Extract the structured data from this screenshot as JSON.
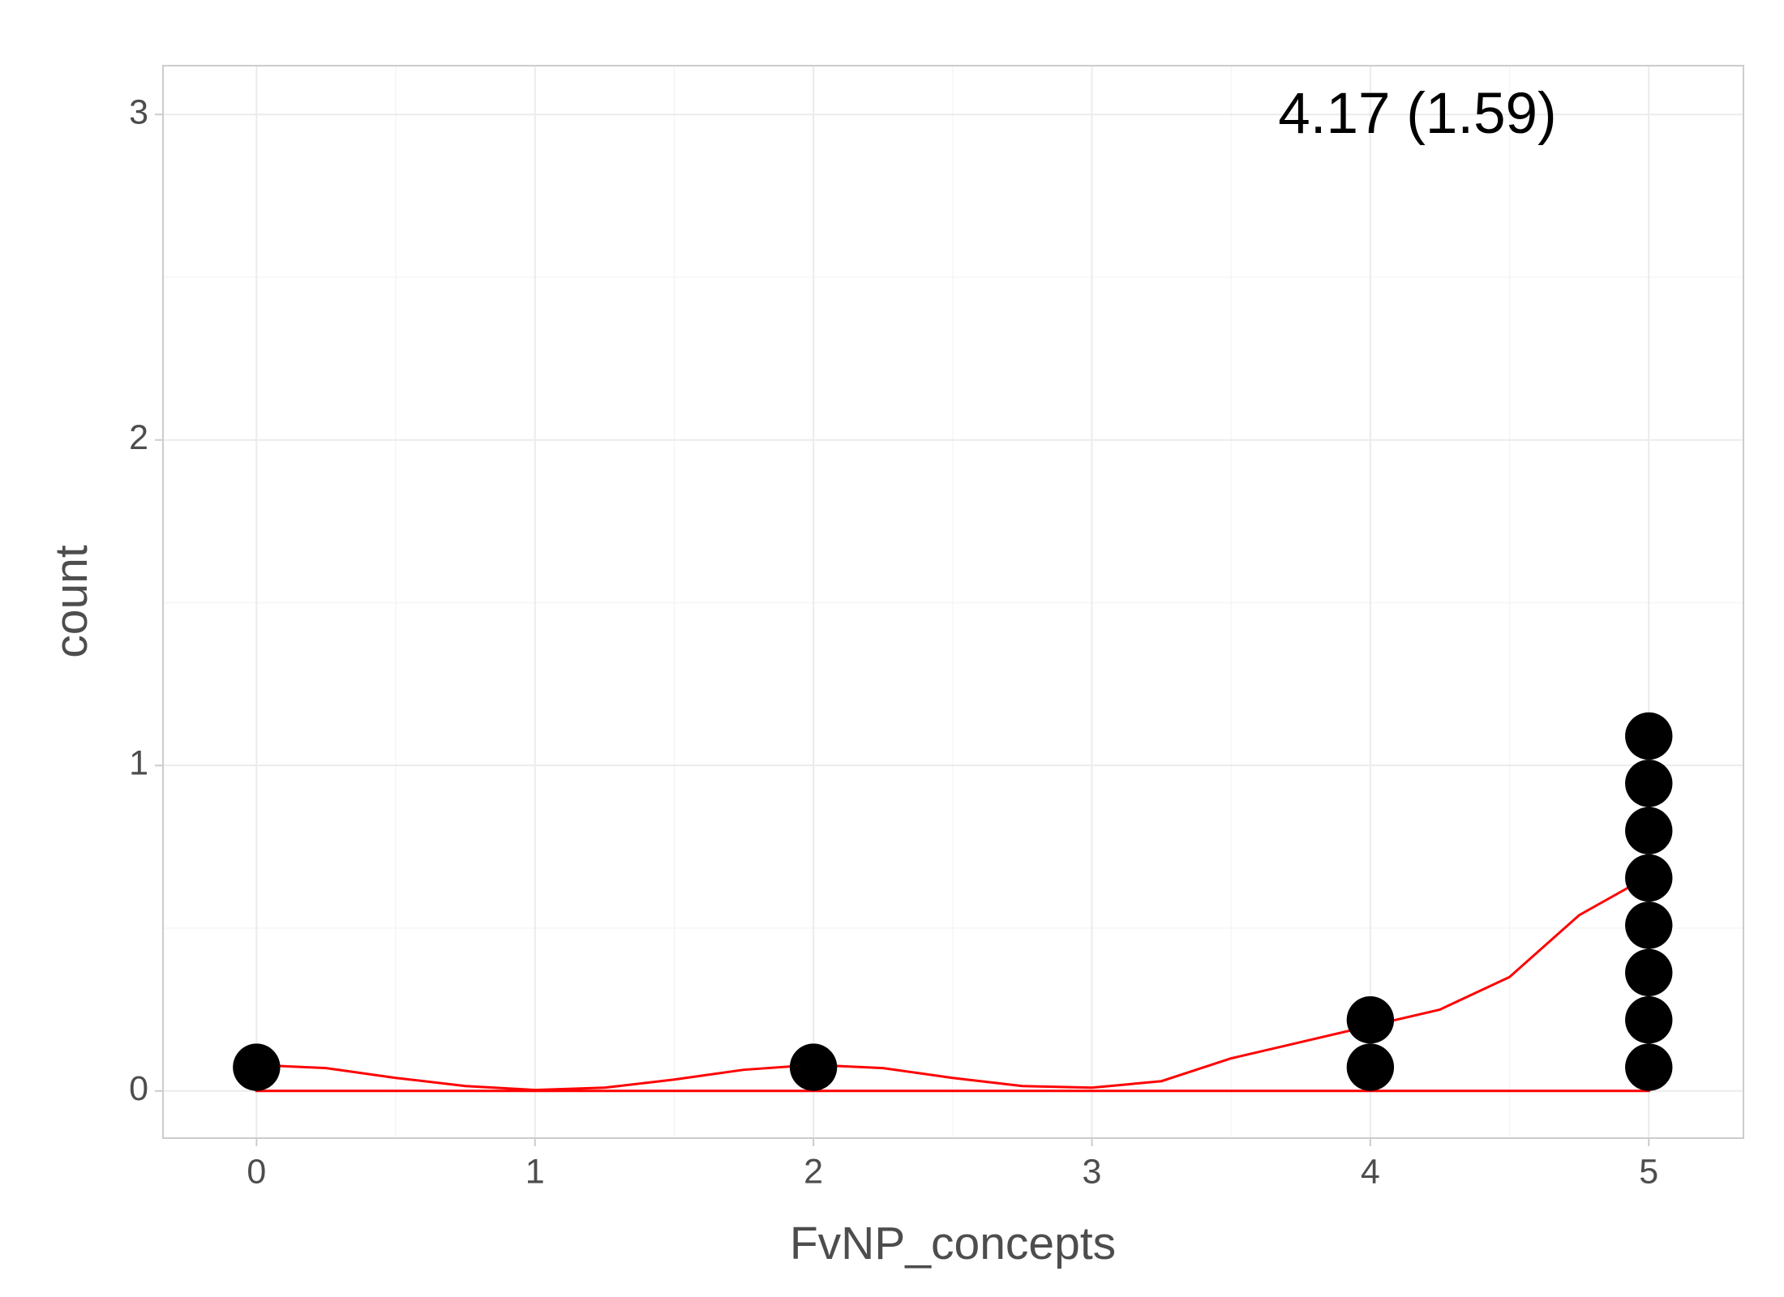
{
  "chart_data": {
    "type": "dotplot",
    "annotation": "4.17 (1.59)",
    "x_label": "FvNP_concepts",
    "y_label": "count",
    "values": [
      0,
      2,
      4,
      4,
      5,
      5,
      5,
      5,
      5,
      5,
      5,
      5
    ],
    "binwidth": 0.17,
    "color": "#000000",
    "density": {
      "color": "#ff0000",
      "x": [
        0,
        0,
        0.25,
        0.5,
        0.75,
        1,
        1.25,
        1.5,
        1.75,
        2,
        2.25,
        2.5,
        2.75,
        3,
        3.25,
        3.5,
        3.75,
        4,
        4.25,
        4.5,
        4.75,
        5,
        5
      ],
      "y": [
        0,
        0.08,
        0.07,
        0.04,
        0.015,
        0.003,
        0.01,
        0.035,
        0.065,
        0.08,
        0.07,
        0.04,
        0.015,
        0.01,
        0.03,
        0.1,
        0.15,
        0.2,
        0.25,
        0.35,
        0.54,
        0.66,
        0
      ]
    },
    "xlim": [
      -0.336,
      5.34
    ],
    "ylim": [
      -0.145,
      3.15
    ],
    "xticks": [
      0,
      1,
      2,
      3,
      4,
      5
    ],
    "yticks": [
      0,
      1,
      2,
      3
    ],
    "grid": true
  }
}
